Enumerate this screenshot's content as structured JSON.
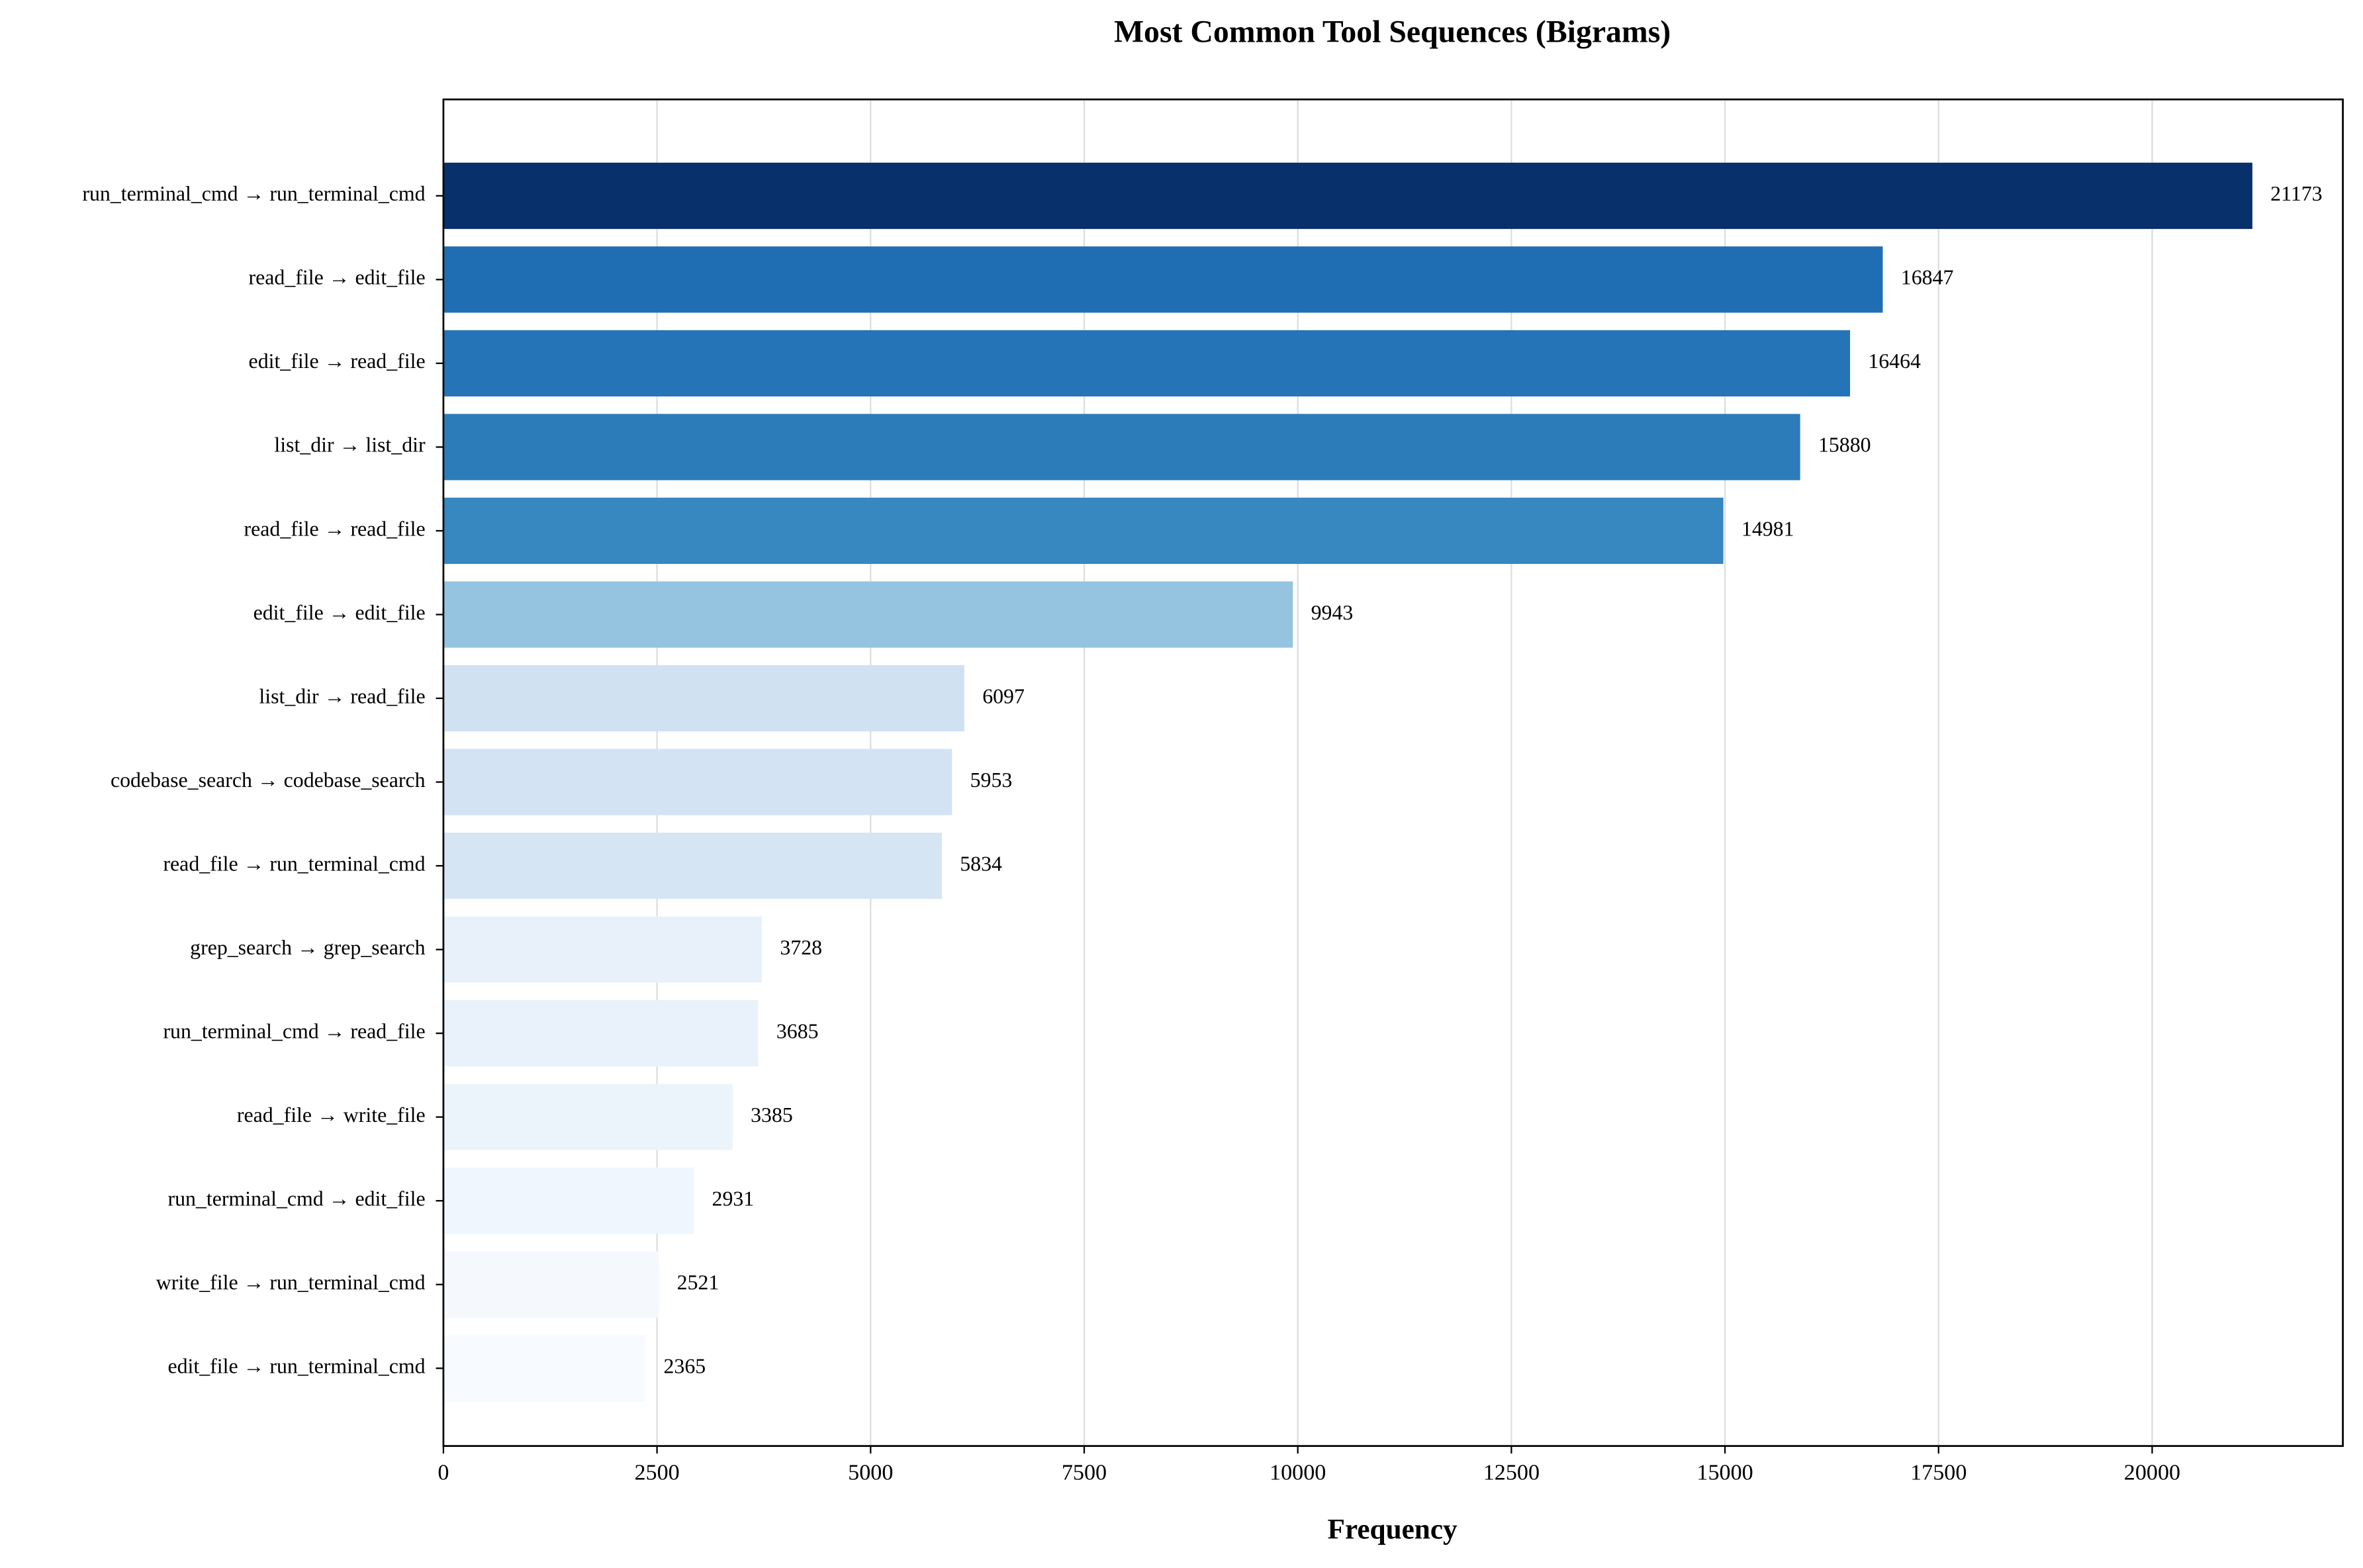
{
  "chart_data": {
    "type": "barh",
    "title": "Most Common Tool Sequences (Bigrams)",
    "x_label": "Frequency",
    "categories": [
      "run_terminal_cmd → run_terminal_cmd",
      "read_file → edit_file",
      "edit_file → read_file",
      "list_dir → list_dir",
      "read_file → read_file",
      "edit_file → edit_file",
      "list_dir → read_file",
      "codebase_search → codebase_search",
      "read_file → run_terminal_cmd",
      "grep_search → grep_search",
      "run_terminal_cmd → read_file",
      "read_file → write_file",
      "run_terminal_cmd → edit_file",
      "write_file → run_terminal_cmd",
      "edit_file → run_terminal_cmd"
    ],
    "values": [
      21173,
      16847,
      16464,
      15880,
      14981,
      9943,
      6097,
      5953,
      5834,
      3728,
      3685,
      3385,
      2931,
      2521,
      2365
    ],
    "colors": [
      "#08306b",
      "#1f6eb3",
      "#2474b7",
      "#2c7cba",
      "#3787c0",
      "#94c4df",
      "#d0e1f2",
      "#d3e3f3",
      "#d6e5f4",
      "#e8f1fa",
      "#e9f2fa",
      "#ecf4fb",
      "#f0f6fd",
      "#f5f9fe",
      "#f7fbff"
    ],
    "xlim": [
      0,
      22232
    ],
    "xticks": [
      0,
      2500,
      5000,
      7500,
      10000,
      12500,
      15000,
      17500,
      20000
    ],
    "grid": true
  }
}
